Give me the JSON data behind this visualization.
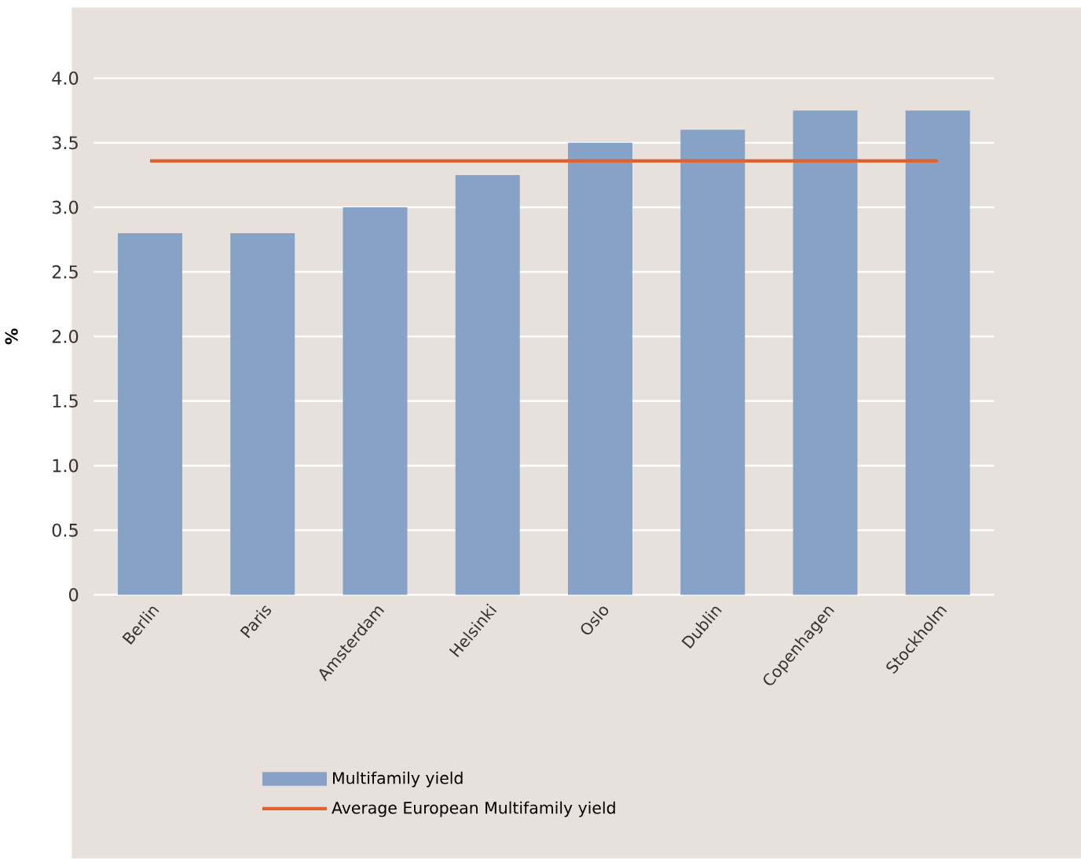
{
  "chart_data": {
    "type": "bar",
    "ylabel": "%",
    "categories": [
      "Berlin",
      "Paris",
      "Amsterdam",
      "Helsinki",
      "Oslo",
      "Dublin",
      "Copenhagen",
      "Stockholm"
    ],
    "series": [
      {
        "name": "Multifamily yield",
        "color": "#87a2c7",
        "values": [
          2.8,
          2.8,
          3.0,
          3.25,
          3.5,
          3.6,
          3.75,
          3.75
        ]
      },
      {
        "name": "Average European Multifamily yield",
        "type": "line",
        "color": "#e0622a",
        "values": [
          3.36,
          3.36,
          3.36,
          3.36,
          3.36,
          3.36,
          3.36,
          3.36
        ]
      }
    ],
    "ylim": [
      0,
      4.0
    ],
    "yticks": [
      {
        "value": 0,
        "label": "0"
      },
      {
        "value": 0.5,
        "label": "0.5"
      },
      {
        "value": 1.0,
        "label": "1.0"
      },
      {
        "value": 1.5,
        "label": "1.5"
      },
      {
        "value": 2.0,
        "label": "2.0"
      },
      {
        "value": 2.5,
        "label": "2.5"
      },
      {
        "value": 3.0,
        "label": "3.0"
      },
      {
        "value": 3.5,
        "label": "3.5"
      },
      {
        "value": 4.0,
        "label": "4.0"
      }
    ],
    "grid": "y",
    "legend": "bottom"
  }
}
